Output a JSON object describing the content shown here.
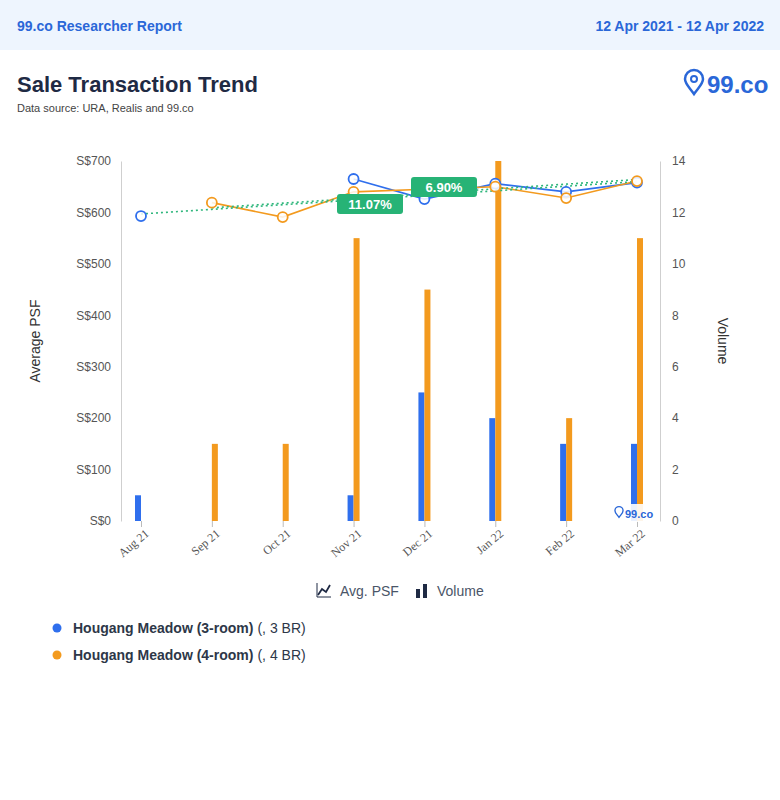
{
  "header": {
    "title": "99.co Researcher Report",
    "period": "12 Apr 2021 - 12 Apr 2022"
  },
  "logo": "99.co",
  "chart_data": {
    "type": "line",
    "title": "Sale Transaction Trend",
    "subtitle": "Data source: URA, Realis and 99.co",
    "y_label": "Average PSF",
    "y2_label": "Volume",
    "measure_labels": [
      "Avg. PSF",
      "Volume"
    ],
    "categories": [
      "Aug 21",
      "Sep 21",
      "Oct 21",
      "Nov 21",
      "Dec 21",
      "Jan 22",
      "Feb 22",
      "Mar 22"
    ],
    "ylim": [
      0,
      700
    ],
    "yticks": [
      {
        "value": 0,
        "label": "S$0"
      },
      {
        "value": 100,
        "label": "S$100"
      },
      {
        "value": 200,
        "label": "S$200"
      },
      {
        "value": 300,
        "label": "S$300"
      },
      {
        "value": 400,
        "label": "S$400"
      },
      {
        "value": 500,
        "label": "S$500"
      },
      {
        "value": 600,
        "label": "S$600"
      },
      {
        "value": 700,
        "label": "S$700"
      }
    ],
    "y2lim": [
      0,
      14
    ],
    "y2ticks": [
      0,
      2,
      4,
      6,
      8,
      10,
      12,
      14
    ],
    "series": [
      {
        "name": "Hougang Meadow (3-room)",
        "detail": "(, 3 BR)",
        "color": "#2f6fed",
        "marker": "circle",
        "line_style": "solid",
        "values": [
          593,
          null,
          null,
          665,
          626,
          656,
          640,
          658
        ],
        "volumes": [
          1,
          null,
          null,
          1,
          5,
          4,
          3,
          3
        ]
      },
      {
        "name": "Hougang Meadow (4-room)",
        "detail": "(, 4 BR)",
        "color": "#f39a1e",
        "marker": "circle",
        "line_style": "solid",
        "values": [
          null,
          619,
          591,
          640,
          645,
          650,
          628,
          661
        ],
        "volumes": [
          null,
          3,
          3,
          11,
          9,
          14,
          4,
          11
        ]
      }
    ],
    "trendlines": [
      {
        "color": "#2fb67c",
        "line_style": "dotted",
        "values": [
          597,
          606,
          615,
          624,
          633,
          642,
          651,
          660
        ]
      },
      {
        "color": "#2fb67c",
        "line_style": "dotted",
        "values": [
          null,
          609,
          618,
          627,
          636,
          646,
          655,
          664
        ]
      }
    ],
    "annotations": [
      {
        "text": "11.07%"
      },
      {
        "text": "6.90%"
      }
    ],
    "watermark": "99.co",
    "grid": false,
    "legend": "bottom"
  }
}
